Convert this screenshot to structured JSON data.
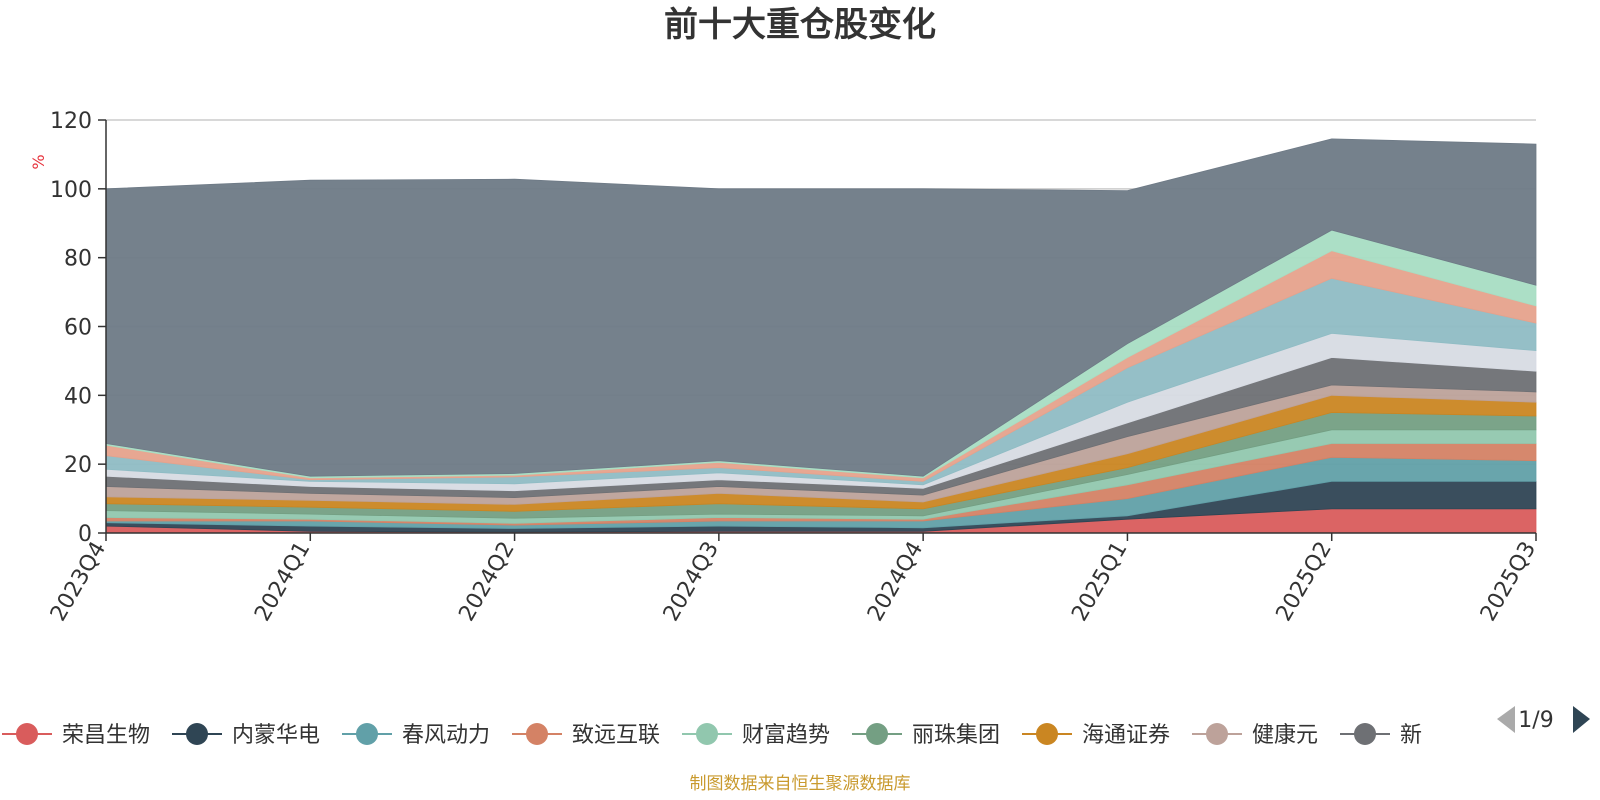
{
  "chart_data": {
    "type": "area",
    "stacked": true,
    "title": "前十大重仓股变化",
    "ylabel": "%",
    "ylim": [
      0,
      120
    ],
    "yticks": [
      0,
      20,
      40,
      60,
      80,
      100,
      120
    ],
    "grid": true,
    "legend_position": "bottom",
    "categories": [
      "2023Q4",
      "2024Q1",
      "2024Q2",
      "2024Q3",
      "2024Q4",
      "2025Q1",
      "2025Q2",
      "2025Q3"
    ],
    "series": [
      {
        "name": "荣昌生物",
        "color": "#d95c5c",
        "values": [
          2,
          0.5,
          0.3,
          0.5,
          0.5,
          4,
          7,
          7
        ]
      },
      {
        "name": "内蒙华电",
        "color": "#2f4554",
        "values": [
          1,
          1.5,
          1,
          1.5,
          1,
          1,
          8,
          8
        ]
      },
      {
        "name": "春风动力",
        "color": "#61a0a8",
        "values": [
          0.5,
          1.5,
          1,
          1.5,
          2,
          5,
          7,
          6
        ]
      },
      {
        "name": "致远互联",
        "color": "#d48265",
        "values": [
          1,
          0.5,
          0.5,
          1,
          0.5,
          4,
          4,
          5
        ]
      },
      {
        "name": "财富趋势",
        "color": "#91c7ae",
        "values": [
          2,
          1.5,
          1.5,
          1,
          1,
          3,
          4,
          4
        ]
      },
      {
        "name": "丽珠集团",
        "color": "#749f83",
        "values": [
          2,
          2,
          2,
          3,
          2,
          2,
          5,
          4
        ]
      },
      {
        "name": "海通证券",
        "color": "#ca8622",
        "values": [
          2,
          2,
          2,
          3,
          2,
          4,
          5,
          4
        ]
      },
      {
        "name": "健康元",
        "color": "#bda29a",
        "values": [
          3,
          2,
          2,
          2,
          2,
          5,
          3,
          3
        ]
      },
      {
        "name": "新",
        "color": "#6e7074",
        "values": [
          3,
          2,
          2,
          2,
          2,
          4,
          8,
          6
        ]
      },
      {
        "name": "",
        "color": "#d7dbe3",
        "values": [
          2,
          1.5,
          2,
          2,
          1,
          6,
          7,
          6
        ]
      },
      {
        "name": "",
        "color": "#8fbcc4",
        "values": [
          4,
          0.5,
          2,
          1.5,
          1,
          10,
          16,
          8
        ]
      },
      {
        "name": "",
        "color": "#e6a28c",
        "values": [
          3,
          0.5,
          0.5,
          1.5,
          1,
          3,
          8,
          5
        ]
      },
      {
        "name": "",
        "color": "#a8ddc3",
        "values": [
          0.5,
          0.5,
          0.5,
          0.5,
          0.5,
          4,
          6,
          6
        ]
      },
      {
        "name": "",
        "color": "#6e7a86",
        "values": [
          74,
          86,
          85.5,
          79,
          83.5,
          44.5,
          26.5,
          41
        ]
      }
    ]
  },
  "legend": {
    "items": [
      "荣昌生物",
      "内蒙华电",
      "春风动力",
      "致远互联",
      "财富趋势",
      "丽珠集团",
      "海通证券",
      "健康元",
      "新"
    ],
    "page": "1/9"
  },
  "source_note": "制图数据来自恒生聚源数据库"
}
